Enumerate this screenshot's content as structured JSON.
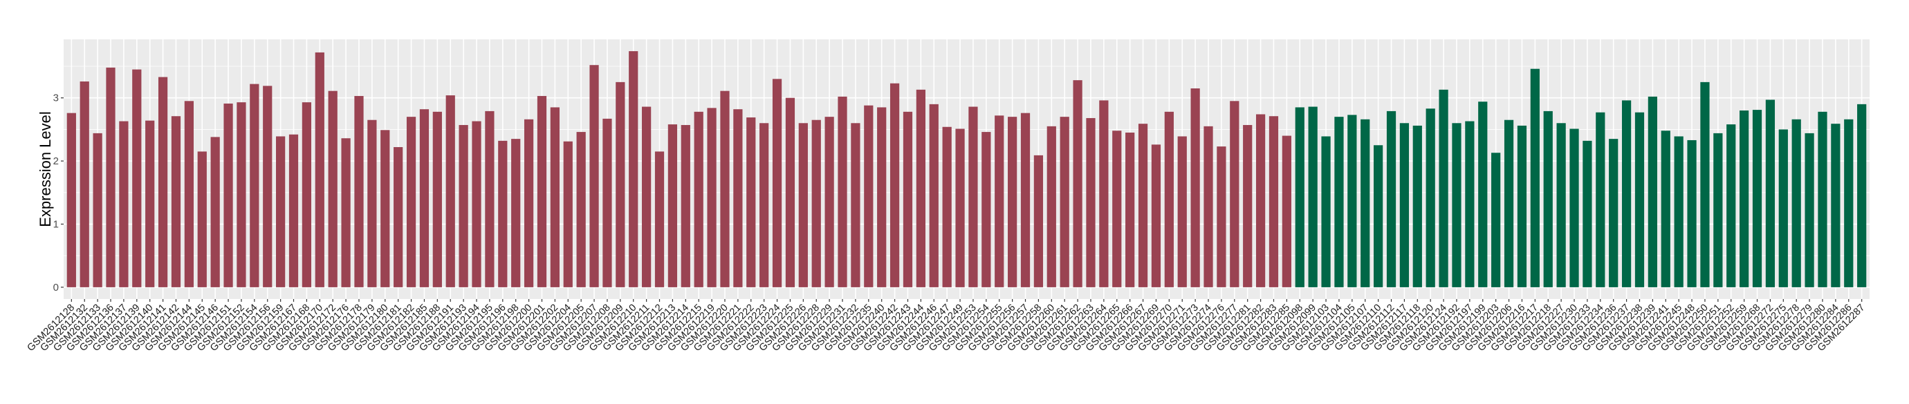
{
  "chart_data": {
    "type": "bar",
    "title": "",
    "xlabel": "",
    "ylabel": "Expression Level",
    "ylim": [
      -0.187,
      3.927
    ],
    "yticks": [
      0,
      1,
      2,
      3
    ],
    "grid": true,
    "legend": "none",
    "colors": {
      "group1": "#9A4352",
      "group2": "#006747",
      "panel": "#EBEBEB",
      "grid": "#FFFFFF"
    },
    "series": [
      {
        "color_key": "group1",
        "categories": [
          "GSM2612128",
          "GSM2612132",
          "GSM2612133",
          "GSM2612136",
          "GSM2612137",
          "GSM2612139",
          "GSM2612140",
          "GSM2612141",
          "GSM2612142",
          "GSM2612144",
          "GSM2612145",
          "GSM2612146",
          "GSM2612151",
          "GSM2612152",
          "GSM2612154",
          "GSM2612156",
          "GSM2612159",
          "GSM2612167",
          "GSM2612168",
          "GSM2612170",
          "GSM2612172",
          "GSM2612176",
          "GSM2612178",
          "GSM2612179",
          "GSM2612180",
          "GSM2612181",
          "GSM2612182",
          "GSM2612185",
          "GSM2612188",
          "GSM2612191",
          "GSM2612193",
          "GSM2612194",
          "GSM2612195",
          "GSM2612196",
          "GSM2612198",
          "GSM2612200",
          "GSM2612201",
          "GSM2612202",
          "GSM2612204",
          "GSM2612205",
          "GSM2612207",
          "GSM2612208",
          "GSM2612209",
          "GSM2612210",
          "GSM2612211",
          "GSM2612212",
          "GSM2612213",
          "GSM2612214",
          "GSM2612215",
          "GSM2612219",
          "GSM2612220",
          "GSM2612221",
          "GSM2612222",
          "GSM2612223",
          "GSM2612224",
          "GSM2612225",
          "GSM2612226",
          "GSM2612228",
          "GSM2612229",
          "GSM2612231",
          "GSM2612232",
          "GSM2612235",
          "GSM2612240",
          "GSM2612242",
          "GSM2612243",
          "GSM2612244",
          "GSM2612246",
          "GSM2612247",
          "GSM2612249",
          "GSM2612253",
          "GSM2612254",
          "GSM2612255",
          "GSM2612256",
          "GSM2612257",
          "GSM2612258",
          "GSM2612260",
          "GSM2612261",
          "GSM2612262",
          "GSM2612263",
          "GSM2612264",
          "GSM2612265",
          "GSM2612266",
          "GSM2612267",
          "GSM2612269",
          "GSM2612270",
          "GSM2612271",
          "GSM2612273",
          "GSM2612274",
          "GSM2612276",
          "GSM2612277",
          "GSM2612281",
          "GSM2612282",
          "GSM2612283",
          "GSM2612285"
        ],
        "values": [
          2.76,
          3.26,
          2.44,
          3.48,
          2.63,
          3.45,
          2.64,
          3.33,
          2.71,
          2.95,
          2.15,
          2.38,
          2.91,
          2.93,
          3.22,
          3.19,
          2.39,
          2.42,
          2.93,
          3.72,
          3.11,
          2.36,
          3.03,
          2.65,
          2.49,
          2.22,
          2.7,
          2.82,
          2.78,
          3.04,
          2.57,
          2.63,
          2.79,
          2.32,
          2.35,
          2.66,
          3.03,
          2.85,
          2.31,
          2.46,
          3.52,
          2.67,
          3.25,
          3.74,
          2.86,
          2.15,
          2.58,
          2.57,
          2.78,
          2.84,
          3.11,
          2.82,
          2.69,
          2.6,
          3.3,
          3.0,
          2.6,
          2.65,
          2.7,
          3.02,
          2.6,
          2.88,
          2.85,
          3.23,
          2.78,
          3.13,
          2.9,
          2.54,
          2.51,
          2.86,
          2.46,
          2.72,
          2.7,
          2.76,
          2.09,
          2.55,
          2.7,
          3.28,
          2.68,
          2.96,
          2.48,
          2.45,
          2.59,
          2.26,
          2.78,
          2.39,
          3.15,
          2.55,
          2.23,
          2.95,
          2.57,
          2.74,
          2.71,
          2.4
        ]
      },
      {
        "color_key": "group2",
        "categories": [
          "GSM2612098",
          "GSM2612099",
          "GSM2612103",
          "GSM2612104",
          "GSM2612105",
          "GSM2612107",
          "GSM2612110",
          "GSM2612112",
          "GSM2612117",
          "GSM2612118",
          "GSM2612120",
          "GSM2612124",
          "GSM2612192",
          "GSM2612197",
          "GSM2612199",
          "GSM2612203",
          "GSM2612206",
          "GSM2612216",
          "GSM2612217",
          "GSM2612218",
          "GSM2612227",
          "GSM2612230",
          "GSM2612233",
          "GSM2612234",
          "GSM2612236",
          "GSM2612237",
          "GSM2612238",
          "GSM2612239",
          "GSM2612241",
          "GSM2612245",
          "GSM2612248",
          "GSM2612250",
          "GSM2612251",
          "GSM2612252",
          "GSM2612259",
          "GSM2612268",
          "GSM2612272",
          "GSM2612275",
          "GSM2612278",
          "GSM2612279",
          "GSM2612280",
          "GSM2612284",
          "GSM2612286",
          "GSM2612287"
        ],
        "values": [
          2.85,
          2.86,
          2.39,
          2.7,
          2.73,
          2.66,
          2.25,
          2.79,
          2.6,
          2.56,
          2.83,
          3.13,
          2.6,
          2.63,
          2.94,
          2.13,
          2.65,
          2.56,
          3.46,
          2.79,
          2.6,
          2.51,
          2.32,
          2.77,
          2.35,
          2.96,
          2.77,
          3.02,
          2.48,
          2.39,
          2.33,
          3.25,
          2.44,
          2.58,
          2.8,
          2.81,
          2.97,
          2.5,
          2.66,
          2.44,
          2.78,
          2.59,
          2.66,
          2.9
        ]
      }
    ]
  }
}
